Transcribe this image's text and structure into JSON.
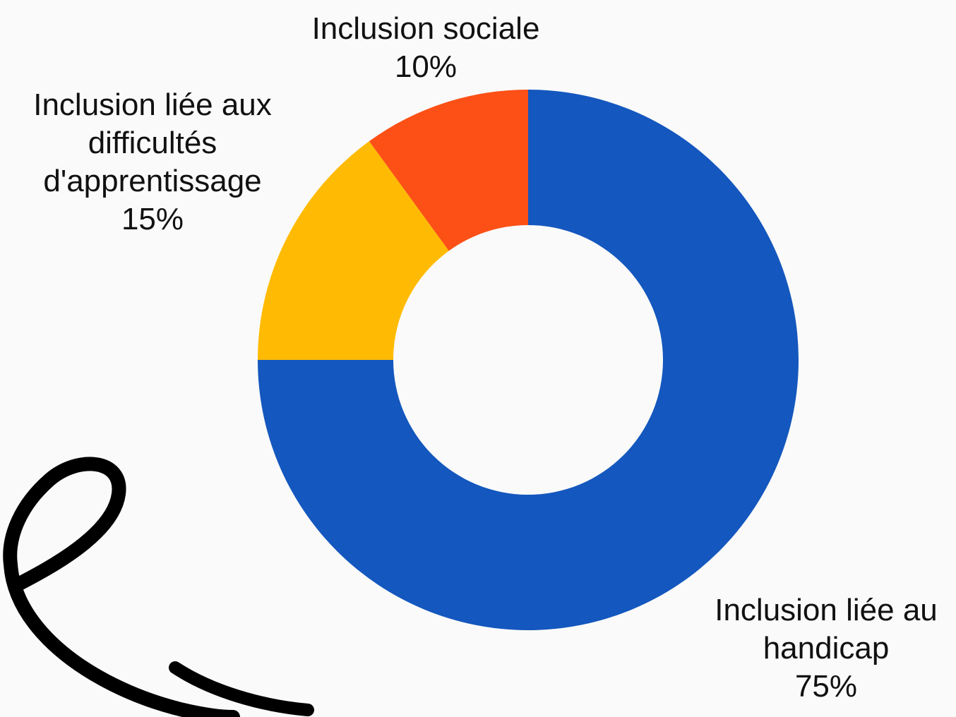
{
  "chart_data": {
    "type": "pie",
    "donut": true,
    "title": "",
    "slices": [
      {
        "label_lines": [
          "Inclusion liée au",
          "handicap"
        ],
        "value": 75,
        "value_label": "75%",
        "color": "#1457be"
      },
      {
        "label_lines": [
          "Inclusion liée aux",
          "difficultés",
          "d'apprentissage"
        ],
        "value": 15,
        "value_label": "15%",
        "color": "#ffbb04"
      },
      {
        "label_lines": [
          "Inclusion sociale"
        ],
        "value": 10,
        "value_label": "10%",
        "color": "#fc5016"
      }
    ]
  },
  "decoration": {
    "squiggle_color": "#000000"
  }
}
